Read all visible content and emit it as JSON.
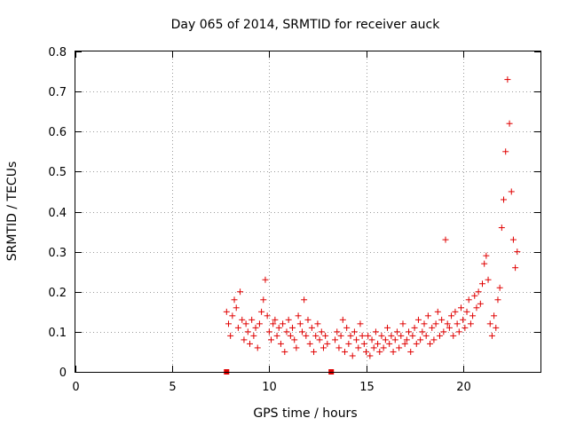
{
  "chart_data": {
    "type": "scatter",
    "title": "Day 065 of 2014, SRMTID for receiver auck",
    "xlabel": "GPS time / hours",
    "ylabel": "SRMTID / TECUs",
    "xlim": [
      0,
      24
    ],
    "ylim": [
      0,
      0.8
    ],
    "xticks": [
      0,
      5,
      10,
      15,
      20
    ],
    "yticks": [
      0,
      0.1,
      0.2,
      0.3,
      0.4,
      0.5,
      0.6,
      0.7,
      0.8
    ],
    "xtick_labels": [
      "0",
      "5",
      "10",
      "15",
      "20"
    ],
    "ytick_labels": [
      "0",
      "0.1",
      "0.2",
      "0.3",
      "0.4",
      "0.5",
      "0.6",
      "0.7",
      "0.8"
    ],
    "grid": true,
    "marker": "+",
    "color": "#e00000",
    "gap_markers_x": [
      7.8,
      13.2
    ],
    "series": [
      {
        "name": "SRMTID",
        "x": [
          7.8,
          7.9,
          8.0,
          8.1,
          8.2,
          8.3,
          8.4,
          8.5,
          8.6,
          8.7,
          8.8,
          8.9,
          9.0,
          9.1,
          9.2,
          9.3,
          9.4,
          9.5,
          9.6,
          9.7,
          9.8,
          9.9,
          10.0,
          10.1,
          10.2,
          10.3,
          10.4,
          10.5,
          10.6,
          10.7,
          10.8,
          10.9,
          11.0,
          11.1,
          11.2,
          11.3,
          11.4,
          11.5,
          11.6,
          11.7,
          11.8,
          11.9,
          12.0,
          12.1,
          12.2,
          12.3,
          12.4,
          12.5,
          12.6,
          12.7,
          12.8,
          12.9,
          13.0,
          13.4,
          13.5,
          13.6,
          13.7,
          13.8,
          13.9,
          14.0,
          14.1,
          14.2,
          14.3,
          14.4,
          14.5,
          14.6,
          14.7,
          14.8,
          14.9,
          15.0,
          15.1,
          15.2,
          15.3,
          15.4,
          15.5,
          15.6,
          15.7,
          15.8,
          15.9,
          16.0,
          16.1,
          16.2,
          16.3,
          16.4,
          16.5,
          16.6,
          16.7,
          16.8,
          16.9,
          17.0,
          17.1,
          17.2,
          17.3,
          17.4,
          17.5,
          17.6,
          17.7,
          17.8,
          17.9,
          18.0,
          18.1,
          18.2,
          18.3,
          18.4,
          18.5,
          18.6,
          18.7,
          18.8,
          18.9,
          19.0,
          19.1,
          19.2,
          19.3,
          19.4,
          19.5,
          19.6,
          19.7,
          19.8,
          19.9,
          20.0,
          20.1,
          20.2,
          20.3,
          20.4,
          20.5,
          20.6,
          20.7,
          20.8,
          20.9,
          21.0,
          21.1,
          21.2,
          21.3,
          21.4,
          21.5,
          21.6,
          21.7,
          21.8,
          21.9,
          22.0,
          22.1,
          22.2,
          22.3,
          22.4,
          22.5,
          22.6,
          22.7,
          22.8
        ],
        "y": [
          0.15,
          0.12,
          0.09,
          0.14,
          0.18,
          0.16,
          0.11,
          0.2,
          0.13,
          0.08,
          0.12,
          0.1,
          0.07,
          0.13,
          0.09,
          0.11,
          0.06,
          0.12,
          0.15,
          0.18,
          0.23,
          0.14,
          0.1,
          0.08,
          0.12,
          0.13,
          0.09,
          0.11,
          0.07,
          0.12,
          0.05,
          0.1,
          0.13,
          0.09,
          0.11,
          0.08,
          0.06,
          0.14,
          0.12,
          0.1,
          0.18,
          0.09,
          0.13,
          0.07,
          0.11,
          0.05,
          0.09,
          0.12,
          0.08,
          0.1,
          0.06,
          0.09,
          0.07,
          0.08,
          0.1,
          0.06,
          0.09,
          0.13,
          0.05,
          0.11,
          0.07,
          0.09,
          0.04,
          0.1,
          0.08,
          0.06,
          0.12,
          0.09,
          0.07,
          0.05,
          0.09,
          0.04,
          0.08,
          0.06,
          0.1,
          0.07,
          0.05,
          0.09,
          0.06,
          0.08,
          0.11,
          0.07,
          0.09,
          0.05,
          0.08,
          0.1,
          0.06,
          0.09,
          0.12,
          0.07,
          0.08,
          0.1,
          0.05,
          0.09,
          0.11,
          0.07,
          0.13,
          0.08,
          0.1,
          0.12,
          0.09,
          0.14,
          0.07,
          0.11,
          0.08,
          0.12,
          0.15,
          0.09,
          0.13,
          0.1,
          0.33,
          0.12,
          0.11,
          0.14,
          0.09,
          0.15,
          0.12,
          0.1,
          0.16,
          0.13,
          0.11,
          0.15,
          0.18,
          0.12,
          0.14,
          0.19,
          0.16,
          0.2,
          0.17,
          0.22,
          0.27,
          0.29,
          0.23,
          0.12,
          0.09,
          0.14,
          0.11,
          0.18,
          0.21,
          0.36,
          0.43,
          0.55,
          0.73,
          0.62,
          0.45,
          0.33,
          0.26,
          0.3
        ],
        "label": "SRMTID"
      }
    ]
  }
}
